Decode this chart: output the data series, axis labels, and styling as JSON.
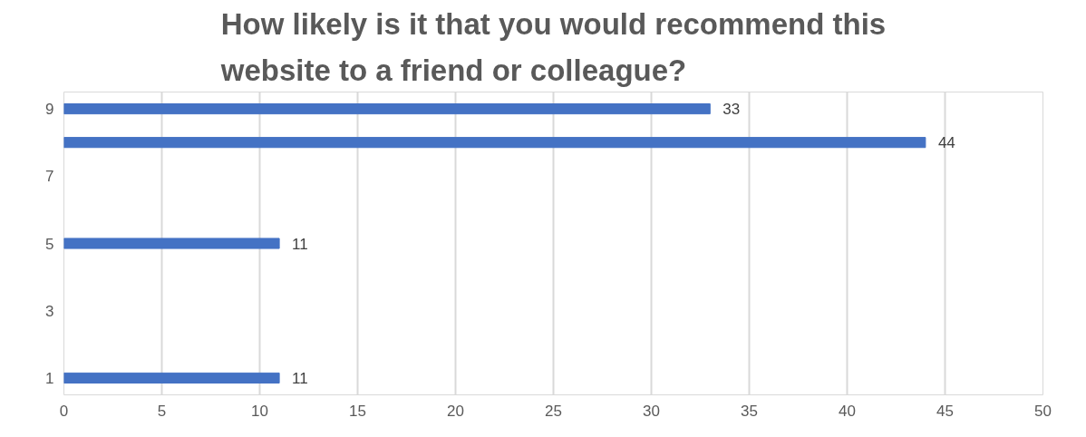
{
  "chart_data": {
    "type": "bar",
    "orientation": "horizontal",
    "title": "How likely is it that you would recommend this website to a friend or colleague?",
    "categories": [
      "9",
      null,
      "7",
      null,
      "5",
      null,
      "3",
      null,
      "1"
    ],
    "values": [
      33,
      44,
      null,
      null,
      11,
      null,
      null,
      null,
      11
    ],
    "color": "#4472c4",
    "xlim": [
      0,
      50
    ],
    "xticks": [
      0,
      5,
      10,
      15,
      20,
      25,
      30,
      35,
      40,
      45,
      50
    ],
    "grid": "x",
    "data_labels": true
  }
}
